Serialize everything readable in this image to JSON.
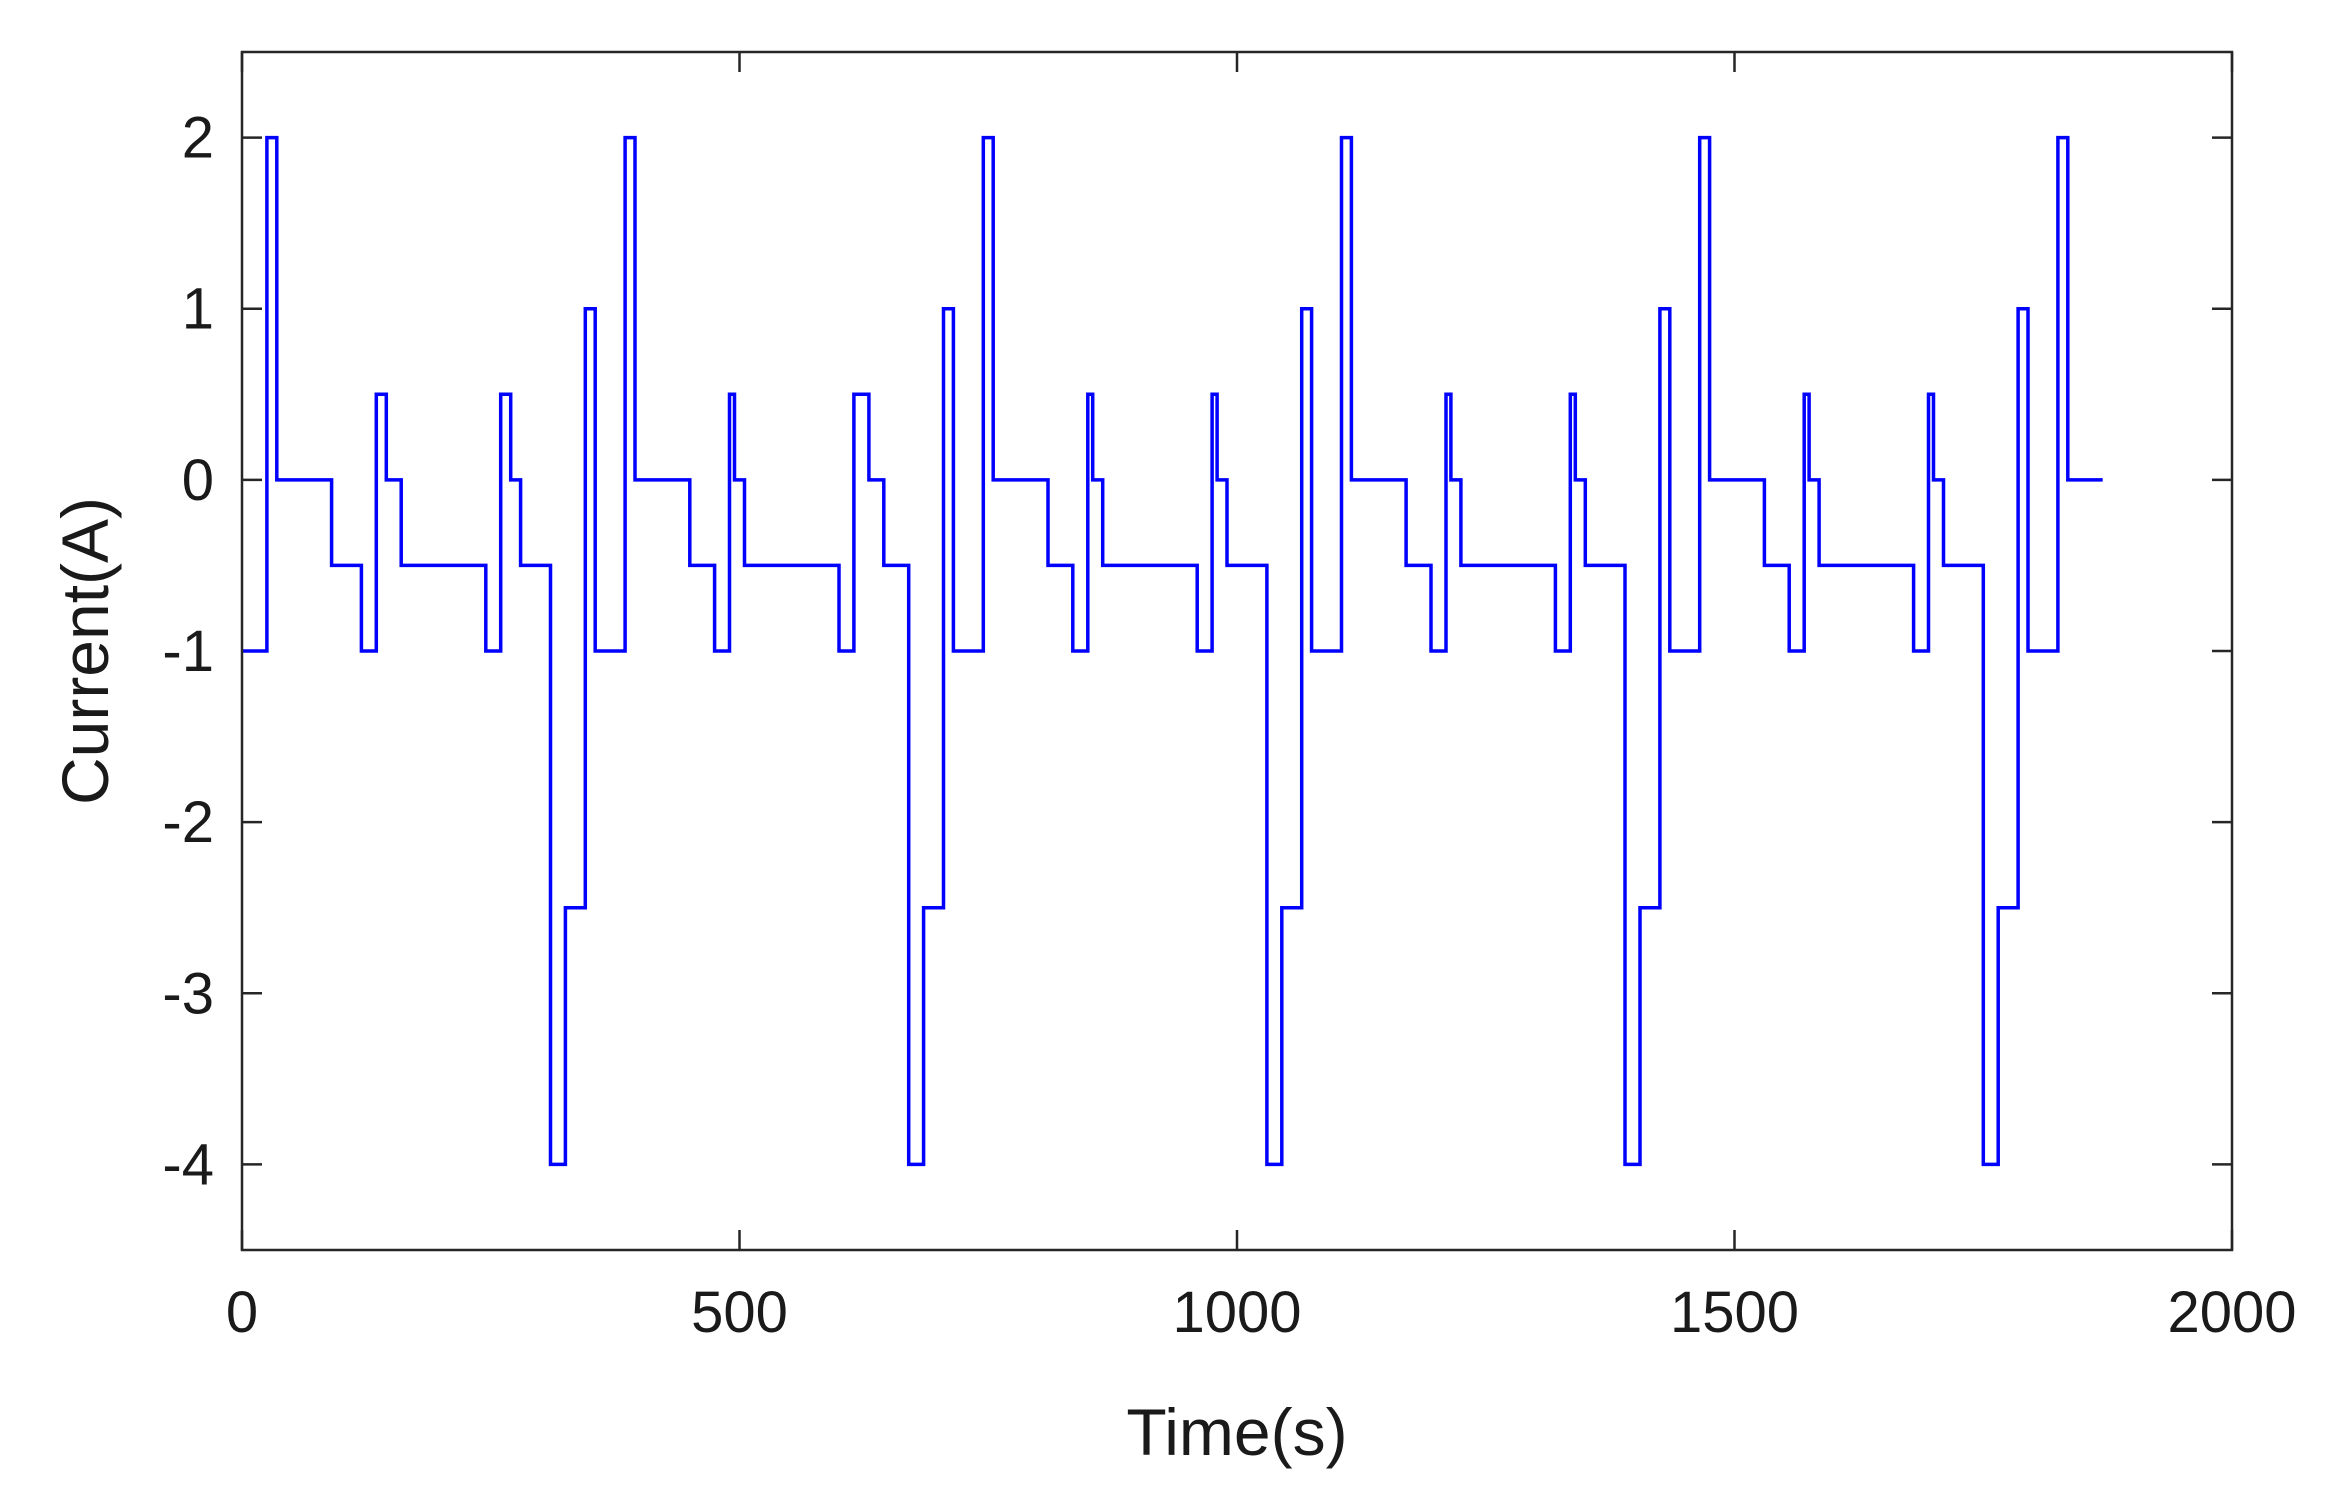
{
  "chart_data": {
    "type": "line",
    "title": "",
    "xlabel": "Time(s)",
    "ylabel": "Current(A)",
    "xlim": [
      0,
      2000
    ],
    "ylim": [
      -4.5,
      2.5
    ],
    "xticks": [
      0,
      500,
      1000,
      1500,
      2000
    ],
    "yticks": [
      -4,
      -3,
      -2,
      -1,
      0,
      1,
      2
    ],
    "xtick_labels": [
      "0",
      "500",
      "1000",
      "1500",
      "2000"
    ],
    "ytick_labels": [
      "-4",
      "-3",
      "-2",
      "-1",
      "0",
      "1",
      "2"
    ],
    "grid": false,
    "legend": "none",
    "line_color": "#0000ff",
    "step": true,
    "series": [
      {
        "x": [
          0,
          25,
          30,
          35,
          90,
          120,
          130,
          135,
          145,
          160,
          245,
          255,
          260,
          270,
          280,
          310,
          320,
          325,
          345,
          350,
          355,
          385,
          390,
          395,
          450,
          475,
          485,
          490,
          495,
          505,
          600,
          610,
          615,
          620,
          630,
          645,
          670,
          680,
          685,
          705,
          710,
          715,
          745,
          750,
          755,
          810,
          835,
          845,
          850,
          855,
          865,
          960,
          970,
          975,
          980,
          990,
          1000,
          1030,
          1040,
          1045,
          1065,
          1070,
          1075,
          1105,
          1110,
          1115,
          1170,
          1195,
          1205,
          1210,
          1215,
          1225,
          1320,
          1330,
          1335,
          1340,
          1350,
          1360,
          1390,
          1400,
          1405,
          1425,
          1430,
          1435,
          1465,
          1470,
          1475,
          1530,
          1555,
          1565,
          1570,
          1575,
          1585,
          1680,
          1690,
          1695,
          1700,
          1710,
          1720,
          1750,
          1760,
          1765,
          1785,
          1790,
          1795,
          1825,
          1830,
          1835,
          1870
        ],
        "y": [
          -1,
          2,
          2,
          0,
          -0.5,
          -1,
          -1,
          0.5,
          0,
          -0.5,
          -1,
          -1,
          0.5,
          0,
          -0.5,
          -4,
          -4,
          -2.5,
          1,
          1,
          -1,
          2,
          2,
          0,
          -0.5,
          -1,
          -1,
          0.5,
          0,
          -0.5,
          -1,
          -1,
          0.5,
          0.5,
          0,
          -0.5,
          -4,
          -4,
          -2.5,
          1,
          1,
          -1,
          2,
          2,
          0,
          -0.5,
          -1,
          -1,
          0.5,
          0,
          -0.5,
          -1,
          -1,
          0.5,
          0,
          -0.5,
          -0.5,
          -4,
          -4,
          -2.5,
          1,
          1,
          -1,
          2,
          2,
          0,
          -0.5,
          -1,
          -1,
          0.5,
          0,
          -0.5,
          -1,
          -1,
          0.5,
          0,
          -0.5,
          -0.5,
          -4,
          -4,
          -2.5,
          1,
          1,
          -1,
          2,
          2,
          0,
          -0.5,
          -1,
          -1,
          0.5,
          0,
          -0.5,
          -1,
          -1,
          0.5,
          0,
          -0.5,
          -0.5,
          -4,
          -4,
          -2.5,
          1,
          1,
          -1,
          2,
          2,
          0,
          0
        ]
      }
    ]
  }
}
